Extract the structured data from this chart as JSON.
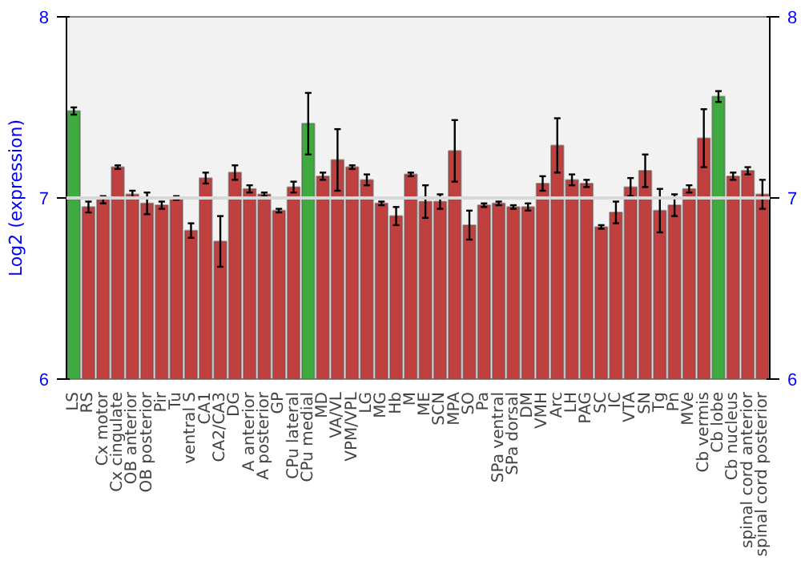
{
  "chart_data": {
    "type": "bar",
    "ylabel": "Log2 (expression)",
    "categories": [
      "LS",
      "RS",
      "Cx motor",
      "Cx cingulate",
      "OB anterior",
      "OB posterior",
      "Pir",
      "Tu",
      "ventral S",
      "CA1",
      "CA2/CA3",
      "DG",
      "A anterior",
      "A posterior",
      "GP",
      "CPu lateral",
      "CPu medial",
      "MD",
      "VA/VL",
      "VPM/VPL",
      "LG",
      "MG",
      "Hb",
      "M",
      "ME",
      "SCN",
      "MPA",
      "SO",
      "Pa",
      "SPa ventral",
      "SPa dorsal",
      "DM",
      "VMH",
      "Arc",
      "LH",
      "PAG",
      "SC",
      "IC",
      "VTA",
      "SN",
      "Tg",
      "Pn",
      "MVe",
      "Cb vermis",
      "Cb lobe",
      "Cb nucleus",
      "spinal cord anterior",
      "spinal cord posterior"
    ],
    "values": [
      7.48,
      6.95,
      6.99,
      7.17,
      7.02,
      6.97,
      6.96,
      7.0,
      6.82,
      7.11,
      6.76,
      7.14,
      7.05,
      7.02,
      6.93,
      7.06,
      7.41,
      7.12,
      7.21,
      7.17,
      7.1,
      6.97,
      6.9,
      7.13,
      6.98,
      6.98,
      7.26,
      6.85,
      6.96,
      6.97,
      6.95,
      6.95,
      7.08,
      7.29,
      7.1,
      7.08,
      6.84,
      6.92,
      7.06,
      7.15,
      6.93,
      6.96,
      7.05,
      7.33,
      7.56,
      7.12,
      7.15,
      7.02
    ],
    "errors": [
      0.02,
      0.03,
      0.02,
      0.01,
      0.02,
      0.06,
      0.02,
      0.01,
      0.04,
      0.03,
      0.14,
      0.04,
      0.02,
      0.01,
      0.01,
      0.03,
      0.17,
      0.02,
      0.17,
      0.01,
      0.03,
      0.01,
      0.05,
      0.01,
      0.09,
      0.04,
      0.17,
      0.08,
      0.01,
      0.01,
      0.01,
      0.02,
      0.04,
      0.15,
      0.03,
      0.02,
      0.01,
      0.06,
      0.05,
      0.09,
      0.12,
      0.06,
      0.02,
      0.16,
      0.03,
      0.02,
      0.02,
      0.08
    ],
    "colors": [
      "#3faa3f",
      "#c04040",
      "#c04040",
      "#c04040",
      "#c04040",
      "#c04040",
      "#c04040",
      "#c04040",
      "#c04040",
      "#c04040",
      "#c04040",
      "#c04040",
      "#c04040",
      "#c04040",
      "#c04040",
      "#c04040",
      "#3faa3f",
      "#c04040",
      "#c04040",
      "#c04040",
      "#c04040",
      "#c04040",
      "#c04040",
      "#c04040",
      "#c04040",
      "#c04040",
      "#c04040",
      "#c04040",
      "#c04040",
      "#c04040",
      "#c04040",
      "#c04040",
      "#c04040",
      "#c04040",
      "#c04040",
      "#c04040",
      "#c04040",
      "#c04040",
      "#c04040",
      "#c04040",
      "#c04040",
      "#c04040",
      "#c04040",
      "#c04040",
      "#3faa3f",
      "#c04040",
      "#c04040",
      "#c04040"
    ],
    "ylim": [
      6,
      8
    ],
    "yticks": [
      6,
      7,
      8
    ],
    "y2lim": [
      6,
      8
    ],
    "y2ticks": [
      6,
      7,
      8
    ],
    "ref_lines": [
      {
        "axis": "y",
        "value": 7,
        "color": "#d8d8d8"
      }
    ],
    "grid": false
  }
}
